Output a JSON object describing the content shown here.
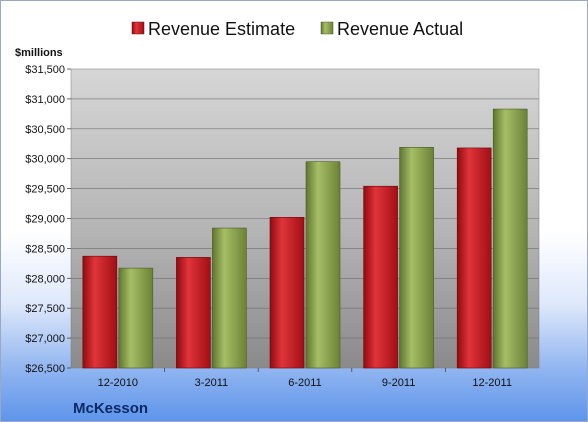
{
  "chart_data": {
    "type": "bar",
    "ylabel": "$millions",
    "footer": "McKesson",
    "categories": [
      "12-2010",
      "3-2011",
      "6-2011",
      "9-2011",
      "12-2011"
    ],
    "series": [
      {
        "name": "Revenue Estimate",
        "color": "#c8161d",
        "values": [
          28370,
          28350,
          29020,
          29540,
          30180
        ]
      },
      {
        "name": "Revenue Actual",
        "color": "#8aa44b",
        "values": [
          28170,
          28840,
          29950,
          30190,
          30830
        ]
      }
    ],
    "ylim": [
      26500,
      31500
    ],
    "yticks": [
      "$26,500",
      "$27,000",
      "$27,500",
      "$28,000",
      "$28,500",
      "$29,000",
      "$29,500",
      "$30,000",
      "$30,500",
      "$31,000",
      "$31,500"
    ],
    "grid": true,
    "legend_position": "top"
  }
}
